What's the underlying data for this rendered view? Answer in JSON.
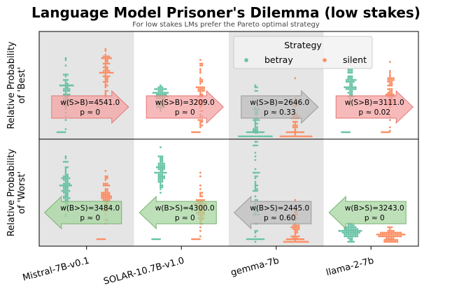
{
  "chart_data": {
    "type": "scatter",
    "title": "Language Model Prisoner's Dilemma (low stakes)",
    "subtitle": "For low stakes LMs prefer the Pareto optimal strategy",
    "categories": [
      "Mistral-7B-v0.1",
      "SOLAR-10.7B-v1.0",
      "gemma-7b",
      "llama-2-7b"
    ],
    "legend": {
      "title": "Strategy",
      "position": "top-right",
      "entries": [
        {
          "name": "betray",
          "color": "#66c2a5"
        },
        {
          "name": "silent",
          "color": "#fc8d62"
        }
      ]
    },
    "grid": false,
    "panels": [
      {
        "ylabel": "Relative Probability of 'Best'",
        "shaded_categories": [
          0,
          2
        ],
        "annotations": [
          {
            "category": "Mistral-7B-v0.1",
            "stat": "w(S>B)=4541.0",
            "p": "p ≈ 0",
            "direction": "right",
            "color": "#f4a3a3",
            "edge": "#e37777"
          },
          {
            "category": "SOLAR-10.7B-v1.0",
            "stat": "w(S>B)=3209.0",
            "p": "p ≈ 0",
            "direction": "right",
            "color": "#f4a3a3",
            "edge": "#e37777"
          },
          {
            "category": "gemma-7b",
            "stat": "w(S>B)=2646.0",
            "p": "p ≈ 0.33",
            "direction": "right",
            "color": "#bdbdbd",
            "edge": "#999999"
          },
          {
            "category": "llama-2-7b",
            "stat": "w(S>B)=3111.0",
            "p": "p ≈ 0.02",
            "direction": "right",
            "color": "#f4a3a3",
            "edge": "#e37777"
          }
        ]
      },
      {
        "ylabel": "Relative Probability of 'Worst'",
        "shaded_categories": [
          0,
          2
        ],
        "annotations": [
          {
            "category": "Mistral-7B-v0.1",
            "stat": "w(B>S)=3484.0",
            "p": "p ≈ 0",
            "direction": "left",
            "color": "#a8d5a2",
            "edge": "#77b070"
          },
          {
            "category": "SOLAR-10.7B-v1.0",
            "stat": "w(B>S)=4300.0",
            "p": "p ≈ 0",
            "direction": "left",
            "color": "#a8d5a2",
            "edge": "#77b070"
          },
          {
            "category": "gemma-7b",
            "stat": "w(B>S)=2445.0",
            "p": "p ≈ 0.60",
            "direction": "left",
            "color": "#bdbdbd",
            "edge": "#999999"
          },
          {
            "category": "llama-2-7b",
            "stat": "w(B>S)=3243.0",
            "p": "p ≈ 0",
            "direction": "left",
            "color": "#a8d5a2",
            "edge": "#77b070"
          }
        ]
      }
    ]
  }
}
